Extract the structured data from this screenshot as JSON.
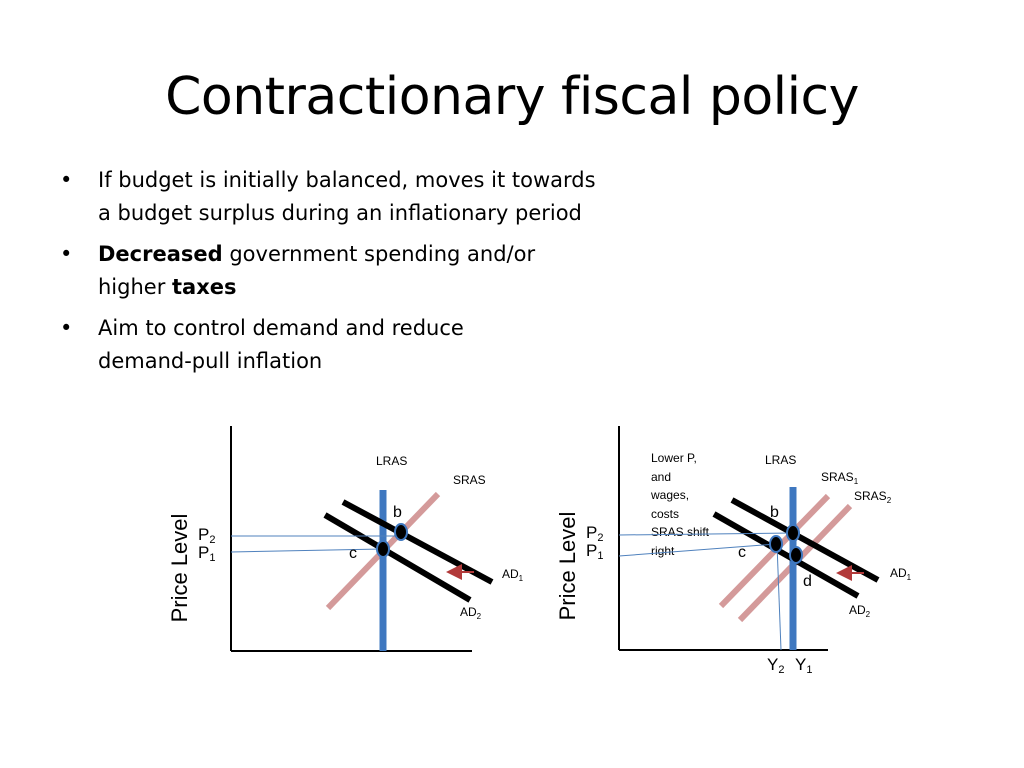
{
  "title": "Contractionary fiscal policy",
  "bullets": [
    {
      "parts": [
        {
          "text": "If budget is initially balanced, moves it towards",
          "bold": false
        },
        {
          "text": "a budget surplus during an inflationary period",
          "bold": false
        }
      ]
    },
    {
      "line1": [
        {
          "text": "Decreased",
          "bold": true
        },
        {
          "text": " government spending and/or",
          "bold": false
        }
      ],
      "line2": [
        {
          "text": "higher ",
          "bold": false
        },
        {
          "text": "taxes",
          "bold": true
        }
      ]
    },
    {
      "parts": [
        {
          "text": "Aim to control demand and reduce",
          "bold": false
        },
        {
          "text": "demand-pull inflation",
          "bold": false
        }
      ]
    }
  ],
  "bullet_glyph": "•",
  "colors": {
    "lras": "#3f78c0",
    "sras": "#d49a9a",
    "ad": "#000000",
    "guide": "#4f81bd",
    "arrow": "#b23a3a"
  },
  "left_diagram": {
    "y_axis_label": "Price Level",
    "labels": {
      "lras": "LRAS",
      "sras": "SRAS",
      "ad1": {
        "base": "AD",
        "sub": "1"
      },
      "ad2": {
        "base": "AD",
        "sub": "2"
      },
      "p2": {
        "base": "P",
        "sub": "2"
      },
      "p1": {
        "base": "P",
        "sub": "1"
      },
      "point_b": "b",
      "point_c": "c"
    }
  },
  "right_diagram": {
    "y_axis_label": "Price Level",
    "note_lines": [
      "Lower P,",
      "and",
      "wages,",
      "costs",
      "SRAS shift",
      "right"
    ],
    "labels": {
      "lras": "LRAS",
      "sras1": {
        "base": "SRAS",
        "sub": "1"
      },
      "sras2": {
        "base": "SRAS",
        "sub": "2"
      },
      "ad1": {
        "base": "AD",
        "sub": "1"
      },
      "ad2": {
        "base": "AD",
        "sub": "2"
      },
      "p2": {
        "base": "P",
        "sub": "2"
      },
      "p1": {
        "base": "P",
        "sub": "1"
      },
      "y2": {
        "base": "Y",
        "sub": "2"
      },
      "y1": {
        "base": "Y",
        "sub": "1"
      },
      "point_b": "b",
      "point_c": "c",
      "point_d": "d"
    }
  }
}
